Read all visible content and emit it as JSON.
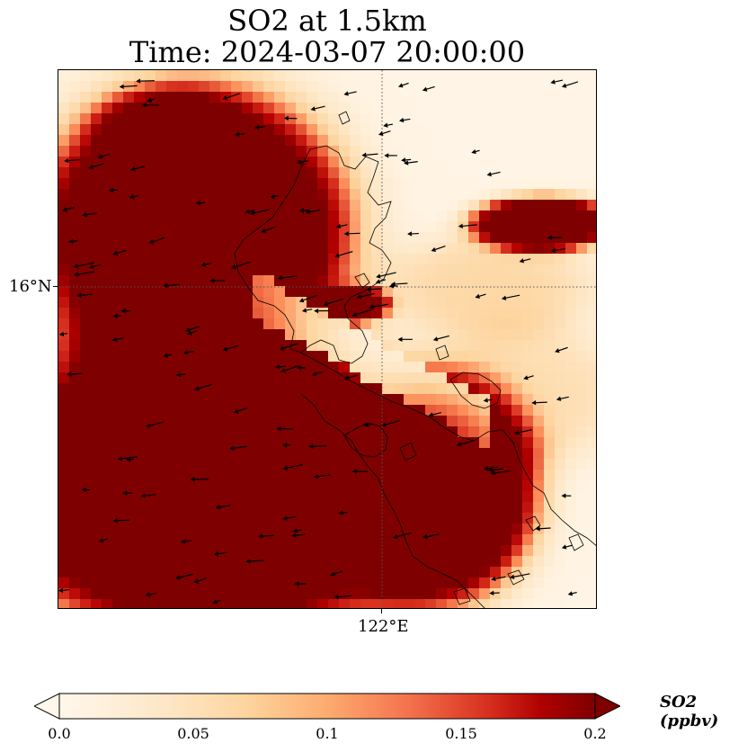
{
  "title_line1": "SO2 at 1.5km",
  "title_line2": "Time: 2024-03-07 20:00:00",
  "axes": {
    "x_tick_label": "122°E",
    "y_tick_label": "16°N",
    "gridlines": "dotted"
  },
  "colorbar": {
    "label": "SO2 (ppbv)",
    "min": 0.0,
    "max": 0.2,
    "ticks": [
      "0.0",
      "0.05",
      "0.1",
      "0.15",
      "0.2"
    ],
    "extend": "both",
    "colormap": "OrRd",
    "colors": [
      "#fff7ec",
      "#fdd49e",
      "#fc8d59",
      "#d7301f",
      "#7f0000"
    ]
  },
  "chart_data": {
    "type": "heatmap",
    "variable": "SO2",
    "units": "ppbv",
    "level": "1.5km",
    "overlays": [
      "coastlines",
      "wind vectors"
    ]
  }
}
